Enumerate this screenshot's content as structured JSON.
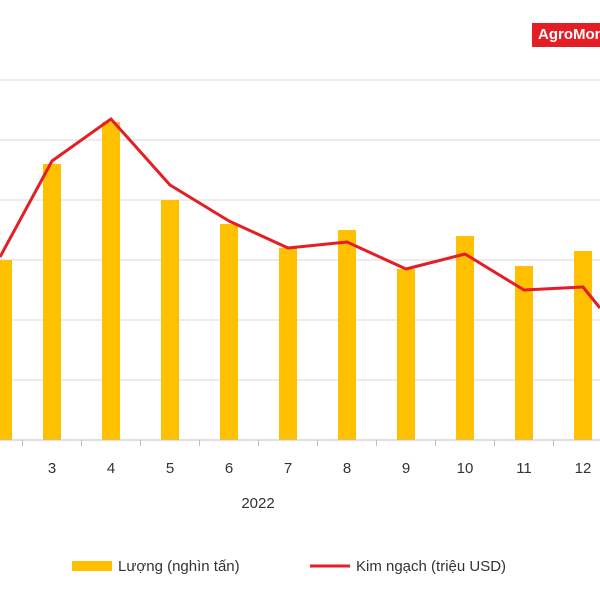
{
  "brand": {
    "label": "AgroMonitor",
    "color": "#e31e24"
  },
  "colors": {
    "bar": "#ffc000",
    "line": "#e31e24",
    "grid": "#d9d9d9",
    "axis": "#bfbfbf"
  },
  "chart_data": {
    "type": "bar",
    "categories": [
      "3",
      "4",
      "5",
      "6",
      "7",
      "8",
      "9",
      "10",
      "11",
      "12"
    ],
    "group_label": "2022",
    "ylim": [
      0,
      6
    ],
    "series": [
      {
        "name": "Lượng (nghìn tấn)",
        "type": "bar",
        "values": [
          4.6,
          5.3,
          4.0,
          3.6,
          3.2,
          3.5,
          2.85,
          3.4,
          2.9,
          3.15
        ]
      },
      {
        "name": "Kim ngạch (triệu USD)",
        "type": "line",
        "values": [
          4.65,
          5.35,
          4.25,
          3.65,
          3.2,
          3.3,
          2.85,
          3.1,
          2.5,
          2.55
        ]
      }
    ],
    "edge_values": {
      "bar_left": 3.0,
      "line_left": 3.05,
      "line_right": 2.2
    },
    "legend_position": "bottom",
    "grid": true
  }
}
